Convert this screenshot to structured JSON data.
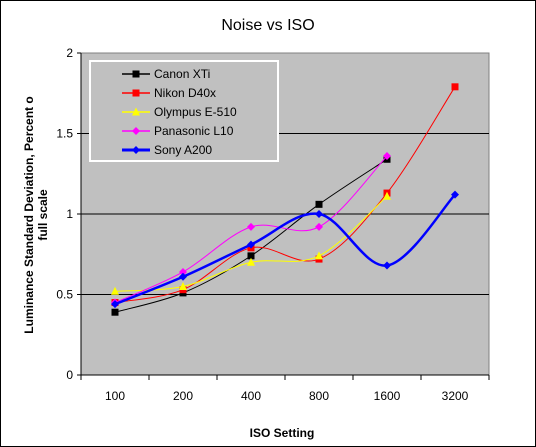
{
  "chart_data": {
    "type": "line",
    "title": "Noise vs ISO",
    "xlabel": "ISO Setting",
    "ylabel_lines": [
      "Luminance Standard Deviation, Percent o",
      "full scale"
    ],
    "categories": [
      "100",
      "200",
      "400",
      "800",
      "1600",
      "3200"
    ],
    "ylim": [
      0,
      2
    ],
    "yticks": [
      "0",
      "0.5",
      "1",
      "1.5",
      "2"
    ],
    "plot_background": "#c0c0c0",
    "grid": true,
    "legend_position": "top-left",
    "series": [
      {
        "name": "Canon XTi",
        "color": "#000000",
        "marker": "square",
        "values": [
          0.39,
          0.51,
          0.74,
          1.06,
          1.34,
          null
        ]
      },
      {
        "name": "Nikon D40x",
        "color": "#ff0000",
        "marker": "square",
        "values": [
          0.45,
          0.53,
          0.79,
          0.72,
          1.13,
          1.79
        ]
      },
      {
        "name": "Olympus E-510",
        "color": "#ffff00",
        "marker": "triangle",
        "values": [
          0.52,
          0.55,
          0.7,
          0.74,
          1.11,
          null
        ]
      },
      {
        "name": "Panasonic L10",
        "color": "#ff00ff",
        "marker": "diamond",
        "values": [
          0.45,
          0.64,
          0.92,
          0.92,
          1.36,
          null
        ]
      },
      {
        "name": "Sony A200",
        "color": "#0000ff",
        "marker": "diamond",
        "values": [
          0.44,
          0.61,
          0.81,
          1.0,
          0.68,
          1.12
        ]
      }
    ]
  }
}
